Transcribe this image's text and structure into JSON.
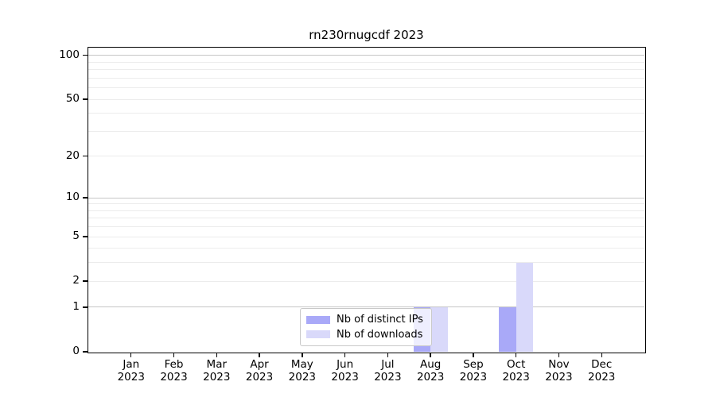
{
  "title": "rn230rnugcdf 2023",
  "chart_data": {
    "type": "bar",
    "title": "rn230rnugcdf 2023",
    "y_scale": "log1p",
    "ylim": [
      0,
      113
    ],
    "xlabel": "",
    "ylabel": "",
    "categories": [
      "Jan",
      "Feb",
      "Mar",
      "Apr",
      "May",
      "Jun",
      "Jul",
      "Aug",
      "Sep",
      "Oct",
      "Nov",
      "Dec"
    ],
    "category_year": "2023",
    "series": [
      {
        "name": "Nb of distinct IPs",
        "color": "#a9a9f8",
        "values": [
          0,
          0,
          0,
          0,
          0,
          0,
          0,
          1,
          0,
          1,
          0,
          0
        ]
      },
      {
        "name": "Nb of downloads",
        "color": "#d9d9fa",
        "values": [
          0,
          0,
          0,
          0,
          0,
          0,
          0,
          1,
          0,
          3,
          0,
          0
        ]
      }
    ],
    "y_ticks": [
      0,
      1,
      2,
      5,
      10,
      20,
      50,
      100
    ],
    "gridlines_major": [
      1,
      10,
      100
    ],
    "gridlines_minor": [
      2,
      3,
      4,
      5,
      6,
      7,
      8,
      9,
      20,
      30,
      40,
      50,
      60,
      70,
      80,
      90
    ],
    "legend": {
      "position": "bottom-center"
    },
    "colors": {
      "grid_major": "#c6c6c6",
      "grid_minor": "#ececec",
      "axis": "#000000",
      "background": "#ffffff"
    }
  }
}
